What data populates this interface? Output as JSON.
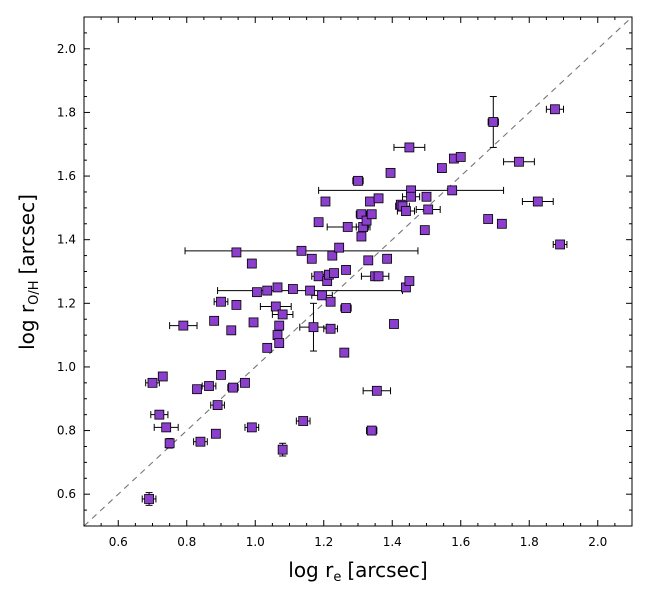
{
  "chart_data": {
    "type": "scatter",
    "xlabel": {
      "main": "log r",
      "sub": "e",
      "unit": "[arcsec]"
    },
    "ylabel": {
      "main": "log r",
      "sub": "O/H",
      "unit": "[arcsec]"
    },
    "xlim": [
      0.5,
      2.1
    ],
    "ylim": [
      0.5,
      2.1
    ],
    "x_ticks": [
      "0.6",
      "0.8",
      "1.0",
      "1.2",
      "1.4",
      "1.6",
      "1.8",
      "2.0"
    ],
    "y_ticks": [
      "0.6",
      "0.8",
      "1.0",
      "1.2",
      "1.4",
      "1.6",
      "1.8",
      "2.0"
    ],
    "reference_line": "one-to-one (dashed)",
    "marker_color": "#8b3fcc",
    "grid": false,
    "points": [
      {
        "x": 0.69,
        "y": 0.585,
        "xerr": 0.02,
        "yerr": 0.02
      },
      {
        "x": 0.7,
        "y": 0.95,
        "xerr": 0.02
      },
      {
        "x": 0.73,
        "y": 0.97
      },
      {
        "x": 0.72,
        "y": 0.85,
        "xerr": 0.025
      },
      {
        "x": 0.74,
        "y": 0.81,
        "xerr": 0.035
      },
      {
        "x": 0.75,
        "y": 0.76,
        "yerr": 0.015
      },
      {
        "x": 0.79,
        "y": 1.13,
        "xerr": 0.04
      },
      {
        "x": 0.83,
        "y": 0.93
      },
      {
        "x": 0.84,
        "y": 0.765,
        "xerr": 0.02
      },
      {
        "x": 0.865,
        "y": 0.94,
        "xerr": 0.02
      },
      {
        "x": 0.88,
        "y": 1.145
      },
      {
        "x": 0.885,
        "y": 0.79
      },
      {
        "x": 0.89,
        "y": 0.88,
        "xerr": 0.02
      },
      {
        "x": 0.9,
        "y": 1.205,
        "xerr": 0.02
      },
      {
        "x": 0.9,
        "y": 0.975
      },
      {
        "x": 0.93,
        "y": 1.115
      },
      {
        "x": 0.935,
        "y": 0.935,
        "xerr": 0.015
      },
      {
        "x": 0.945,
        "y": 1.36
      },
      {
        "x": 0.945,
        "y": 1.195
      },
      {
        "x": 0.97,
        "y": 0.95
      },
      {
        "x": 0.99,
        "y": 0.81,
        "xerr": 0.02
      },
      {
        "x": 0.99,
        "y": 1.325
      },
      {
        "x": 0.995,
        "y": 1.14
      },
      {
        "x": 1.005,
        "y": 1.235
      },
      {
        "x": 1.035,
        "y": 1.24
      },
      {
        "x": 1.035,
        "y": 1.06
      },
      {
        "x": 1.06,
        "y": 1.19,
        "xerr": 0.045
      },
      {
        "x": 1.065,
        "y": 1.25
      },
      {
        "x": 1.065,
        "y": 1.1
      },
      {
        "x": 1.07,
        "y": 1.13
      },
      {
        "x": 1.07,
        "y": 1.075
      },
      {
        "x": 1.08,
        "y": 1.165,
        "xerr": 0.03
      },
      {
        "x": 1.08,
        "y": 0.74,
        "yerr": 0.02
      },
      {
        "x": 1.11,
        "y": 1.245
      },
      {
        "x": 1.135,
        "y": 1.365,
        "xerr": 0.34
      },
      {
        "x": 1.14,
        "y": 0.83,
        "xerr": 0.02
      },
      {
        "x": 1.16,
        "y": 1.24,
        "xerr": 0.27
      },
      {
        "x": 1.165,
        "y": 1.34
      },
      {
        "x": 1.17,
        "y": 1.125,
        "xerr": 0.04,
        "yerr": 0.075
      },
      {
        "x": 1.185,
        "y": 1.455
      },
      {
        "x": 1.185,
        "y": 1.285,
        "xerr": 0.02
      },
      {
        "x": 1.195,
        "y": 1.225,
        "xerr": 0.03
      },
      {
        "x": 1.205,
        "y": 1.52
      },
      {
        "x": 1.21,
        "y": 1.27
      },
      {
        "x": 1.215,
        "y": 1.29,
        "xerr": 0.02
      },
      {
        "x": 1.22,
        "y": 1.205
      },
      {
        "x": 1.22,
        "y": 1.12,
        "xerr": 0.02
      },
      {
        "x": 1.225,
        "y": 1.35
      },
      {
        "x": 1.23,
        "y": 1.295
      },
      {
        "x": 1.245,
        "y": 1.375
      },
      {
        "x": 1.26,
        "y": 1.045
      },
      {
        "x": 1.265,
        "y": 1.305
      },
      {
        "x": 1.265,
        "y": 1.185,
        "xerr": 0.015
      },
      {
        "x": 1.27,
        "y": 1.44,
        "xerr": 0.06
      },
      {
        "x": 1.3,
        "y": 1.585,
        "xerr": 0.015
      },
      {
        "x": 1.31,
        "y": 1.41
      },
      {
        "x": 1.31,
        "y": 1.48,
        "xerr": 0.015
      },
      {
        "x": 1.315,
        "y": 1.44,
        "xerr": 0.02
      },
      {
        "x": 1.325,
        "y": 1.46
      },
      {
        "x": 1.33,
        "y": 1.335
      },
      {
        "x": 1.335,
        "y": 1.52
      },
      {
        "x": 1.34,
        "y": 1.48
      },
      {
        "x": 1.34,
        "y": 0.8,
        "xerr": 0.015
      },
      {
        "x": 1.35,
        "y": 1.285,
        "xerr": 0.04
      },
      {
        "x": 1.355,
        "y": 0.925,
        "xerr": 0.04
      },
      {
        "x": 1.36,
        "y": 1.53
      },
      {
        "x": 1.36,
        "y": 1.285
      },
      {
        "x": 1.385,
        "y": 1.34
      },
      {
        "x": 1.395,
        "y": 1.61
      },
      {
        "x": 1.405,
        "y": 1.135
      },
      {
        "x": 1.425,
        "y": 1.51
      },
      {
        "x": 1.43,
        "y": 1.505,
        "xerr": 0.02
      },
      {
        "x": 1.44,
        "y": 1.25
      },
      {
        "x": 1.44,
        "y": 1.49,
        "xerr": 0.025
      },
      {
        "x": 1.45,
        "y": 1.69,
        "xerr": 0.045
      },
      {
        "x": 1.45,
        "y": 1.27
      },
      {
        "x": 1.455,
        "y": 1.555,
        "xerr": 0.27
      },
      {
        "x": 1.455,
        "y": 1.535,
        "xerr": 0.025
      },
      {
        "x": 1.495,
        "y": 1.43
      },
      {
        "x": 1.5,
        "y": 1.535
      },
      {
        "x": 1.505,
        "y": 1.495,
        "xerr": 0.035
      },
      {
        "x": 1.545,
        "y": 1.625
      },
      {
        "x": 1.575,
        "y": 1.555
      },
      {
        "x": 1.58,
        "y": 1.655
      },
      {
        "x": 1.6,
        "y": 1.66
      },
      {
        "x": 1.68,
        "y": 1.465
      },
      {
        "x": 1.695,
        "y": 1.77,
        "xerr": 0.015,
        "yerr": 0.08
      },
      {
        "x": 1.72,
        "y": 1.45
      },
      {
        "x": 1.77,
        "y": 1.645,
        "xerr": 0.045
      },
      {
        "x": 1.825,
        "y": 1.52,
        "xerr": 0.045
      },
      {
        "x": 1.875,
        "y": 1.81,
        "xerr": 0.025
      },
      {
        "x": 1.89,
        "y": 1.385,
        "xerr": 0.02
      }
    ]
  }
}
